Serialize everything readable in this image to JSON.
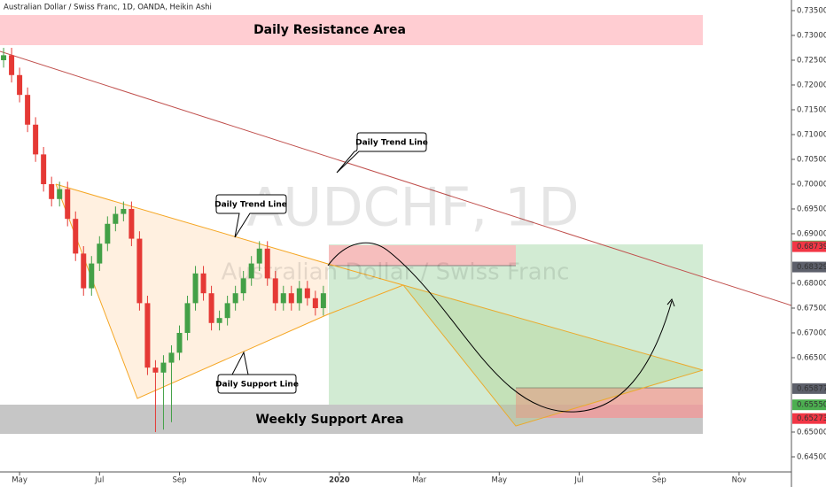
{
  "chart_data": {
    "type": "candlestick",
    "title": "Australian Dollar / Swiss Franc, 1D, OANDA, Heikin Ashi",
    "watermark": "AUDCHF, 1D",
    "watermark_subtitle": "Australian Dollar / Swiss Franc",
    "annotations": {
      "resistance": "Daily Resistance Area",
      "support": "Weekly Support Area",
      "trend_upper": "Daily Trend Line",
      "trend_triangle": "Daily Trend Line",
      "support_line": "Daily Support Line"
    },
    "up_color": "#43a047",
    "down_color": "#e53935",
    "xlim": [
      -0.49,
      19.31
    ],
    "ylim": [
      0.64196,
      0.73714
    ],
    "xticks": [
      {
        "value": 0,
        "label": "May"
      },
      {
        "value": 2,
        "label": "Jul"
      },
      {
        "value": 4,
        "label": "Sep"
      },
      {
        "value": 6,
        "label": "Nov"
      },
      {
        "value": 8,
        "label": "2020"
      },
      {
        "value": 10,
        "label": "Mar"
      },
      {
        "value": 12,
        "label": "May"
      },
      {
        "value": 14,
        "label": "Jul"
      },
      {
        "value": 16,
        "label": "Sep"
      },
      {
        "value": 18,
        "label": "Nov"
      }
    ],
    "yticks": [
      {
        "value": 0.735,
        "label": "0.73500"
      },
      {
        "value": 0.73,
        "label": "0.73000"
      },
      {
        "value": 0.725,
        "label": "0.72500"
      },
      {
        "value": 0.72,
        "label": "0.72000"
      },
      {
        "value": 0.715,
        "label": "0.71500"
      },
      {
        "value": 0.71,
        "label": "0.71000"
      },
      {
        "value": 0.705,
        "label": "0.70500"
      },
      {
        "value": 0.7,
        "label": "0.70000"
      },
      {
        "value": 0.695,
        "label": "0.69500"
      },
      {
        "value": 0.69,
        "label": "0.69000"
      },
      {
        "value": 0.68,
        "label": "0.68000"
      },
      {
        "value": 0.675,
        "label": "0.67500"
      },
      {
        "value": 0.67,
        "label": "0.67000"
      },
      {
        "value": 0.665,
        "label": "0.66500"
      },
      {
        "value": 0.65,
        "label": "0.65000"
      },
      {
        "value": 0.645,
        "label": "0.64500"
      }
    ],
    "price_labels": [
      {
        "value": 0.68754,
        "label": "0.68754",
        "color": "#4caf50"
      },
      {
        "value": 0.68739,
        "label": "0.68739",
        "color": "#f23645"
      },
      {
        "value": 0.68329,
        "label": "0.68329",
        "color": "#5d606b"
      },
      {
        "value": 0.65877,
        "label": "0.65877",
        "color": "#5d606b"
      },
      {
        "value": 0.6555,
        "label": "0.65550",
        "color": "#4caf50"
      },
      {
        "value": 0.65273,
        "label": "0.65273",
        "color": "#f23645"
      }
    ],
    "x": [
      -0.4,
      -0.2,
      0,
      0.2,
      0.4,
      0.6,
      0.8,
      1,
      1.2,
      1.4,
      1.6,
      1.8,
      2,
      2.2,
      2.4,
      2.6,
      2.8,
      3,
      3.2,
      3.4,
      3.6,
      3.8,
      4,
      4.2,
      4.4,
      4.6,
      4.8,
      5,
      5.2,
      5.4,
      5.6,
      5.8,
      6,
      6.2,
      6.4,
      6.6,
      6.8,
      7,
      7.2,
      7.4,
      7.6
    ],
    "open": [
      0.725,
      0.726,
      0.722,
      0.718,
      0.712,
      0.706,
      0.7,
      0.697,
      0.699,
      0.693,
      0.686,
      0.679,
      0.684,
      0.688,
      0.692,
      0.694,
      0.695,
      0.689,
      0.676,
      0.663,
      0.662,
      0.664,
      0.666,
      0.67,
      0.676,
      0.682,
      0.678,
      0.672,
      0.673,
      0.676,
      0.678,
      0.681,
      0.684,
      0.687,
      0.681,
      0.676,
      0.678,
      0.676,
      0.679,
      0.677,
      0.675
    ],
    "high": [
      0.7275,
      0.7275,
      0.7235,
      0.7195,
      0.7135,
      0.7075,
      0.7015,
      0.7005,
      0.7005,
      0.6945,
      0.6875,
      0.6855,
      0.6895,
      0.6935,
      0.6955,
      0.6965,
      0.6965,
      0.6905,
      0.6775,
      0.6645,
      0.6655,
      0.6675,
      0.6715,
      0.6775,
      0.6835,
      0.6835,
      0.6795,
      0.6745,
      0.6775,
      0.6795,
      0.6825,
      0.6855,
      0.6885,
      0.6885,
      0.6825,
      0.6795,
      0.6795,
      0.6805,
      0.6805,
      0.6785,
      0.6795
    ],
    "low": [
      0.7235,
      0.7205,
      0.7165,
      0.7105,
      0.7045,
      0.6985,
      0.6955,
      0.6955,
      0.6915,
      0.6845,
      0.6775,
      0.6775,
      0.6825,
      0.6865,
      0.6905,
      0.6925,
      0.6875,
      0.6745,
      0.6615,
      0.65,
      0.6505,
      0.652,
      0.6645,
      0.6685,
      0.6745,
      0.6765,
      0.6705,
      0.6705,
      0.6715,
      0.6745,
      0.6765,
      0.6795,
      0.6825,
      0.6795,
      0.6745,
      0.6745,
      0.6745,
      0.6745,
      0.6755,
      0.6735,
      0.6735
    ],
    "close": [
      0.726,
      0.722,
      0.718,
      0.712,
      0.706,
      0.7,
      0.697,
      0.699,
      0.693,
      0.686,
      0.679,
      0.684,
      0.688,
      0.692,
      0.694,
      0.695,
      0.689,
      0.676,
      0.663,
      0.662,
      0.664,
      0.666,
      0.67,
      0.676,
      0.682,
      0.678,
      0.672,
      0.673,
      0.676,
      0.678,
      0.681,
      0.684,
      0.687,
      0.681,
      0.676,
      0.678,
      0.676,
      0.679,
      0.677,
      0.675,
      0.678
    ]
  }
}
